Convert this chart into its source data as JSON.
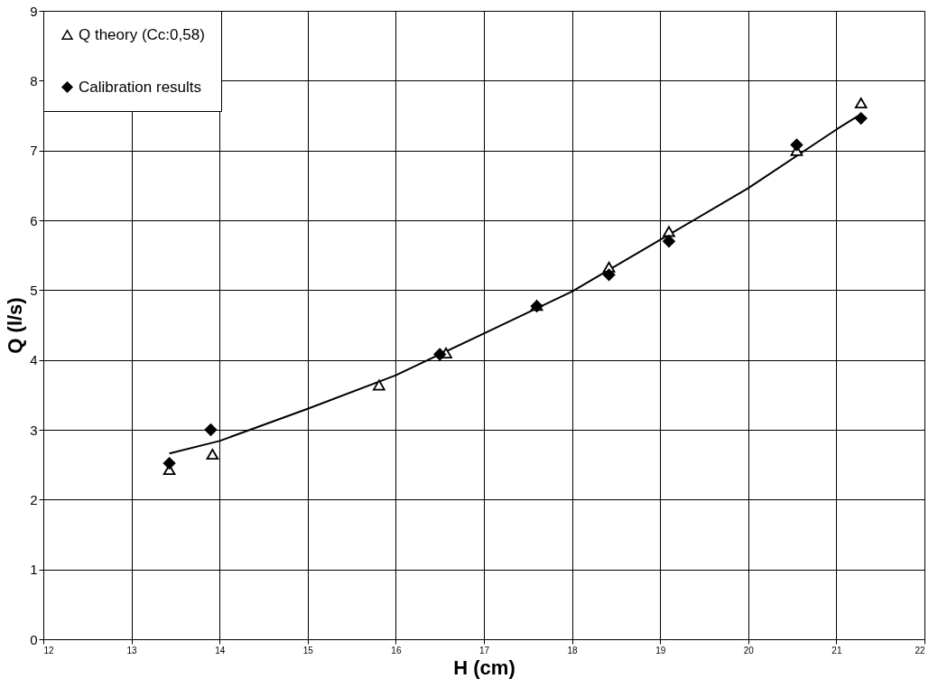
{
  "chart_data": {
    "type": "scatter",
    "xlabel": "H (cm)",
    "ylabel": "Q (l/s)",
    "xlim": [
      12,
      22
    ],
    "ylim": [
      0,
      9
    ],
    "xticks": [
      12,
      13,
      14,
      15,
      16,
      17,
      18,
      19,
      20,
      21,
      22
    ],
    "yticks": [
      0,
      1,
      2,
      3,
      4,
      5,
      6,
      7,
      8,
      9
    ],
    "grid": true,
    "legend": "top left",
    "series": [
      {
        "name": "Q theory (Cc:0,58)",
        "color": "#000000",
        "marker": "triangle",
        "x": [
          13.43,
          13.92,
          15.81,
          16.57,
          17.6,
          18.42,
          19.1,
          20.55,
          21.28
        ],
        "values": [
          2.43,
          2.65,
          3.64,
          4.1,
          4.78,
          5.33,
          5.84,
          7.0,
          7.68
        ]
      },
      {
        "name": "Calibration results",
        "color": "#000000",
        "marker": "diamond",
        "x": [
          13.43,
          13.9,
          16.5,
          17.6,
          18.42,
          19.1,
          20.55,
          21.28
        ],
        "values": [
          2.52,
          3.0,
          4.08,
          4.77,
          5.22,
          5.7,
          7.08,
          7.46
        ]
      },
      {
        "type": "line",
        "color": "#000000",
        "x": [
          13.43,
          14.0,
          15.0,
          16.0,
          17.0,
          18.0,
          19.0,
          20.0,
          21.0,
          21.28
        ],
        "values": [
          2.66,
          2.84,
          3.3,
          3.78,
          4.38,
          4.98,
          5.72,
          6.46,
          7.3,
          7.52
        ]
      }
    ]
  }
}
